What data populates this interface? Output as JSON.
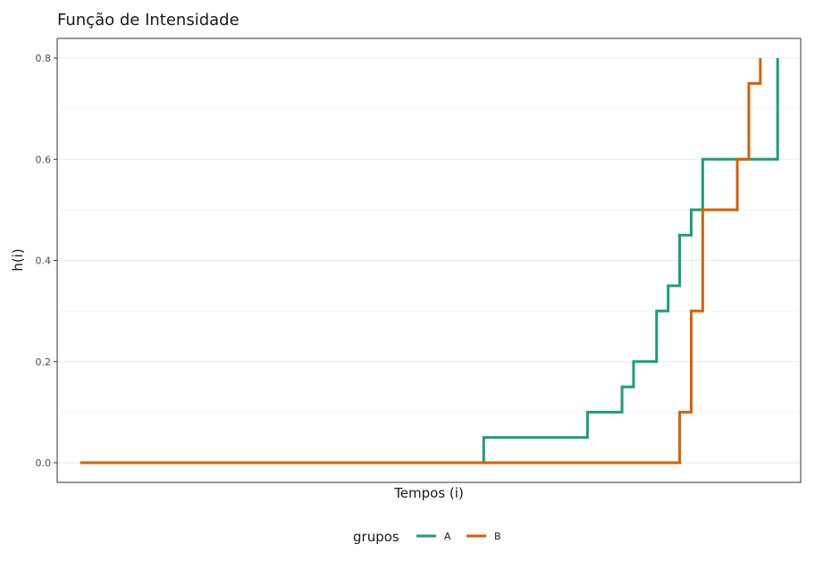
{
  "chart_data": {
    "type": "line",
    "step": true,
    "title": "Função de Intensidade",
    "xlabel": "Tempos (i)",
    "ylabel": "h(i)",
    "ylim": [
      0,
      0.8
    ],
    "yticks": [
      0.0,
      0.2,
      0.4,
      0.6,
      0.8
    ],
    "ytick_labels": [
      "0.0",
      "0.2",
      "0.4",
      "0.6",
      "0.8"
    ],
    "xticks_shown": false,
    "grid": true,
    "legend": {
      "title": "grupos",
      "position": "bottom"
    },
    "series": [
      {
        "name": "A",
        "color": "#1b9e77",
        "x": [
          0,
          70,
          88,
          94,
          96,
          100,
          102,
          104,
          106,
          108,
          110,
          121
        ],
        "y": [
          0,
          0.05,
          0.1,
          0.15,
          0.2,
          0.3,
          0.35,
          0.45,
          0.5,
          0.6,
          0.6,
          0.8
        ]
      },
      {
        "name": "B",
        "color": "#d95f02",
        "x": [
          0,
          104,
          106,
          108,
          114,
          116,
          118
        ],
        "y": [
          0,
          0.1,
          0.3,
          0.5,
          0.6,
          0.75,
          0.8
        ]
      }
    ]
  }
}
